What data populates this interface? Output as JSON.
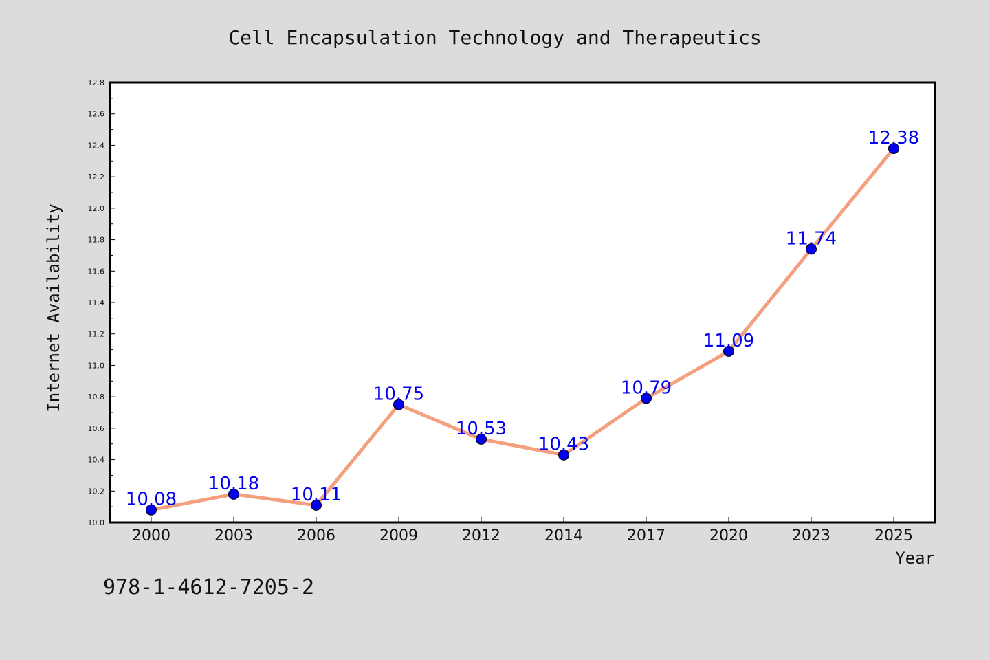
{
  "chart_data": {
    "type": "line",
    "title": "Cell Encapsulation Technology and Therapeutics",
    "xlabel": "Year",
    "ylabel": "Internet Availability",
    "categories": [
      "2000",
      "2003",
      "2006",
      "2009",
      "2012",
      "2014",
      "2017",
      "2020",
      "2023",
      "2025"
    ],
    "values": [
      10.08,
      10.18,
      10.11,
      10.75,
      10.53,
      10.43,
      10.79,
      11.09,
      11.74,
      12.38
    ],
    "data_labels": [
      "10.08",
      "10.18",
      "10.11",
      "10.75",
      "10.53",
      "10.43",
      "10.79",
      "11.09",
      "11.74",
      "12.38"
    ],
    "ylim": [
      10.0,
      12.8
    ],
    "yticks": [
      "10.0",
      "10.2",
      "10.4",
      "10.6",
      "10.8",
      "11.0",
      "11.2",
      "11.4",
      "11.6",
      "11.8",
      "12.0",
      "12.2",
      "12.4",
      "12.6",
      "12.8"
    ],
    "grid": false,
    "line_color": "#f4a07e",
    "marker_color": "#0000ee",
    "label_color": "#0000ee",
    "plot_background": "#ffffff",
    "figure_background": "#dcdcdc"
  },
  "footer": {
    "text": "978-1-4612-7205-2"
  }
}
